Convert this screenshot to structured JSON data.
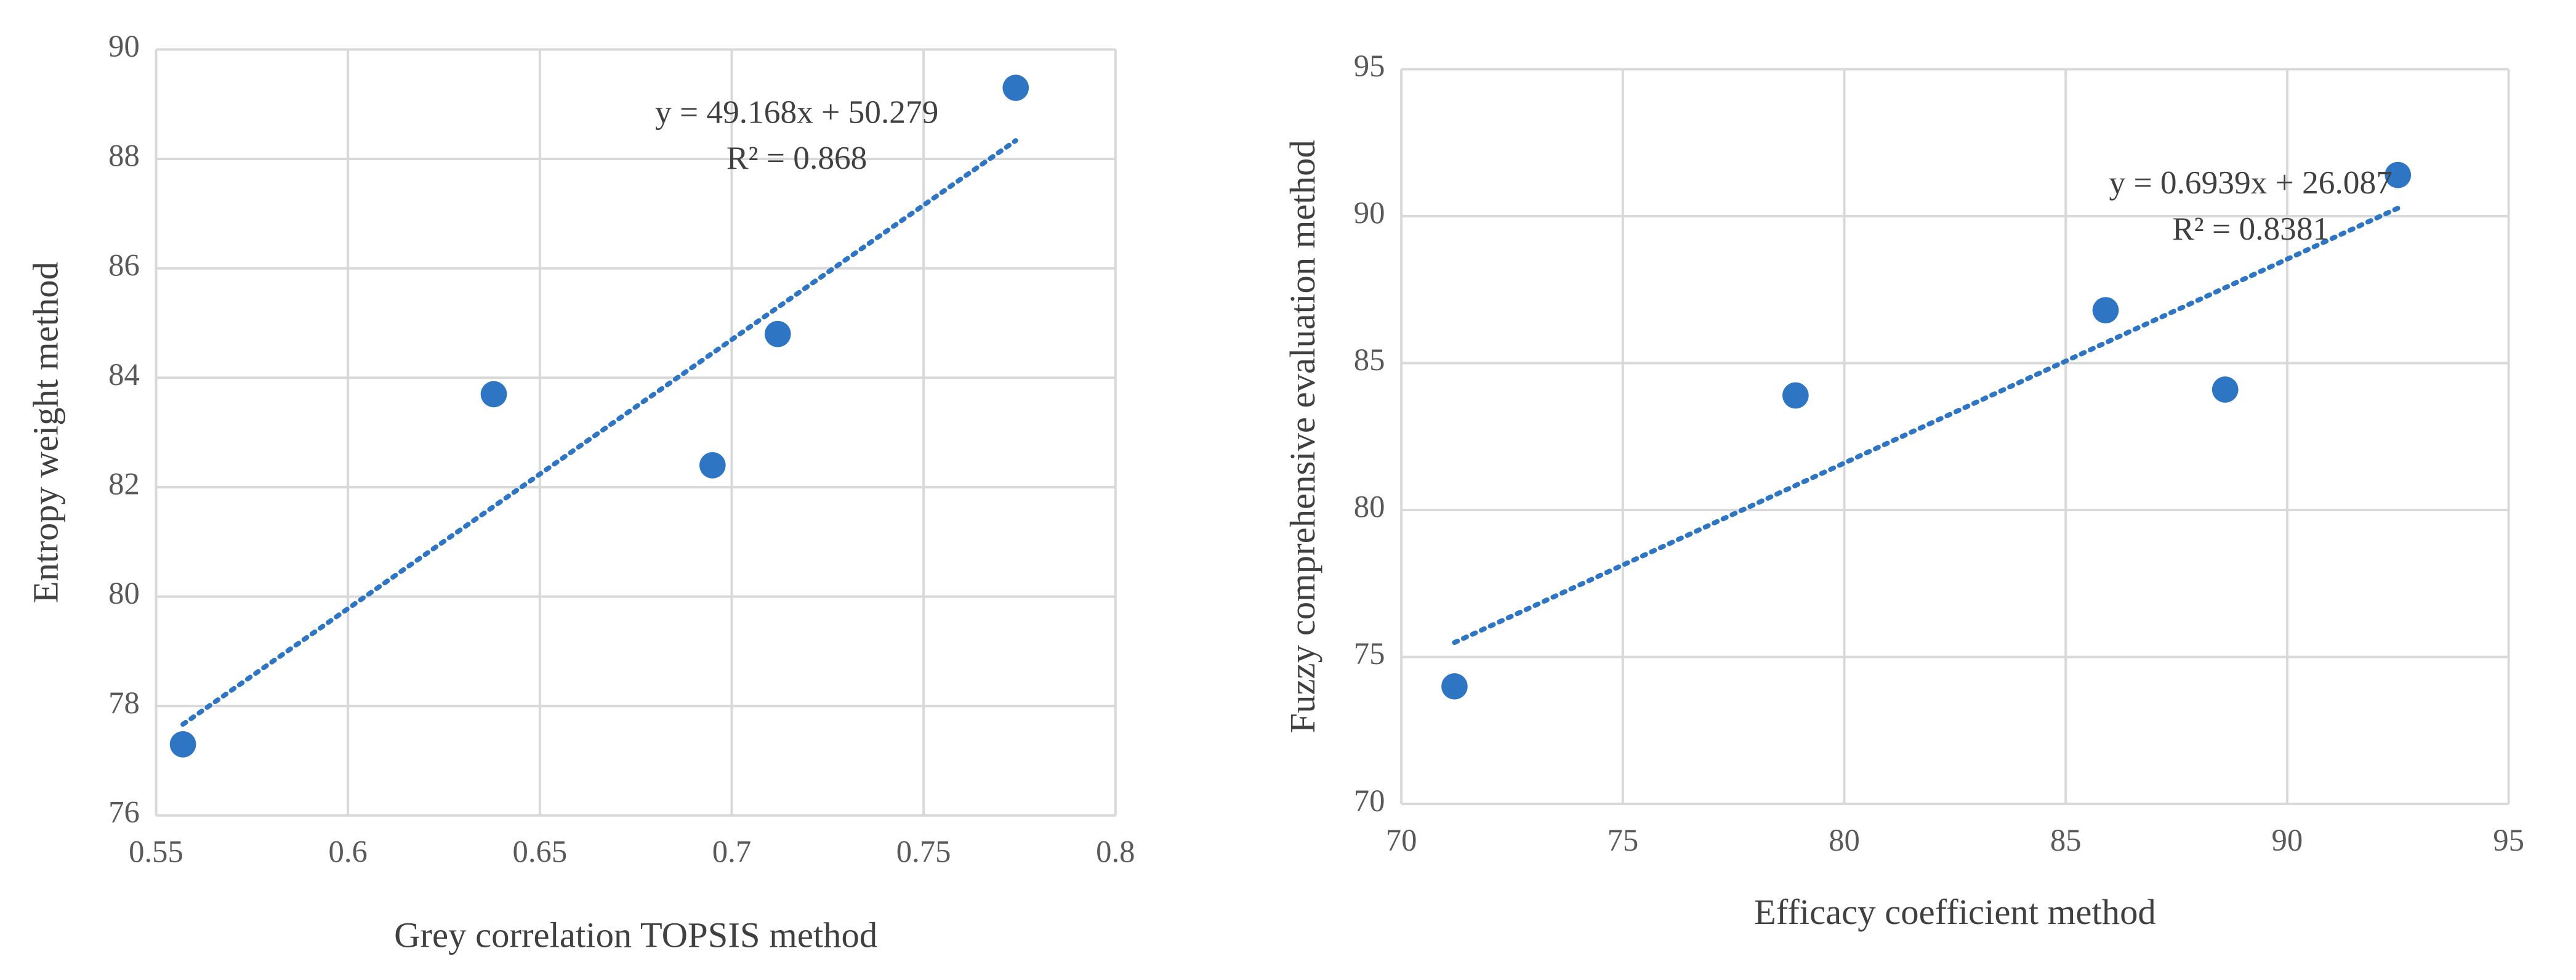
{
  "chart_data": [
    {
      "type": "scatter",
      "x_label": "Grey correlation TOPSIS method",
      "y_label": "Entropy weight method",
      "series": [
        {
          "color": "#2e75c4",
          "x": [
            0.557,
            0.638,
            0.695,
            0.712,
            0.774
          ],
          "values": [
            77.3,
            83.7,
            82.4,
            84.8,
            89.3
          ]
        }
      ],
      "trendline": {
        "equation": "y = 49.168x + 50.279",
        "r2": "R² = 0.868",
        "slope": 49.168,
        "intercept": 50.279,
        "color": "#2e75c4"
      },
      "xlim": [
        0.55,
        0.8
      ],
      "xticks": [
        0.55,
        0.6,
        0.65,
        0.7,
        0.75,
        0.8
      ],
      "ylim": [
        76,
        90
      ],
      "yticks": [
        76,
        78,
        80,
        82,
        84,
        86,
        88,
        90
      ],
      "grid": true
    },
    {
      "type": "scatter",
      "x_label": "Efficacy coefficient method",
      "y_label": "Fuzzy comprehensive evaluation method",
      "series": [
        {
          "color": "#2e75c4",
          "x": [
            71.2,
            78.9,
            85.9,
            88.6,
            92.5
          ],
          "values": [
            74.0,
            83.9,
            86.8,
            84.1,
            91.4
          ]
        }
      ],
      "trendline": {
        "equation": "y = 0.6939x + 26.087",
        "r2": "R² = 0.8381",
        "slope": 0.6939,
        "intercept": 26.087,
        "color": "#2e75c4"
      },
      "xlim": [
        70,
        95
      ],
      "xticks": [
        70,
        75,
        80,
        85,
        90,
        95
      ],
      "ylim": [
        70,
        95
      ],
      "yticks": [
        70,
        75,
        80,
        85,
        90,
        95
      ],
      "grid": true
    }
  ]
}
